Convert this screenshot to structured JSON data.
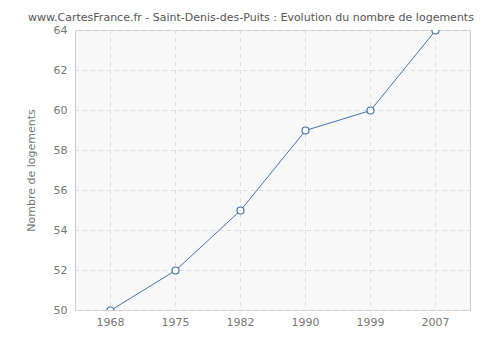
{
  "chart_data": {
    "type": "line",
    "title": "www.CartesFrance.fr - Saint-Denis-des-Puits : Evolution du nombre de logements",
    "y_label": "Nombre de logements",
    "categories": [
      "1968",
      "1975",
      "1982",
      "1990",
      "1999",
      "2007"
    ],
    "values": [
      50,
      52,
      55,
      59,
      60,
      64
    ],
    "color": "#4a72a0",
    "marker": "circle",
    "ylim": [
      50,
      64
    ],
    "yticks": [
      50,
      52,
      54,
      56,
      58,
      60,
      62,
      64
    ],
    "grid": true
  }
}
